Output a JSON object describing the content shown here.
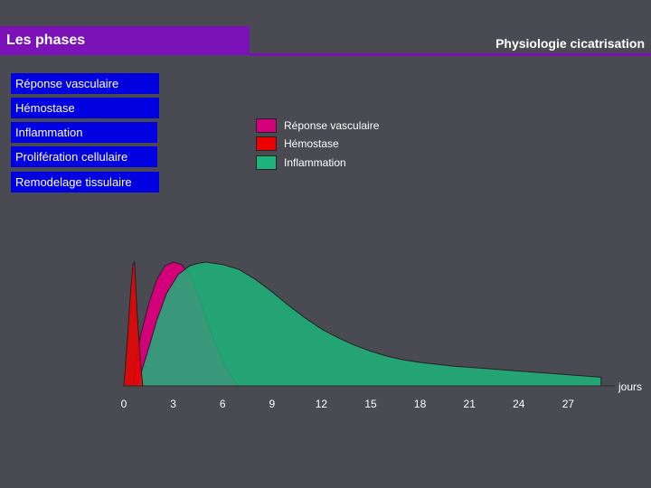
{
  "header": {
    "title": "Les phases",
    "subtitle": "Physiologie cicatrisation",
    "accent_color": "#7a12b8"
  },
  "phases": [
    {
      "label": "Réponse vasculaire"
    },
    {
      "label": "Hémostase"
    },
    {
      "label": "Inflammation"
    },
    {
      "label": "Prolifération cellulaire"
    },
    {
      "label": "Remodelage tissulaire"
    }
  ],
  "phase_box_color": "#0000e0",
  "chart_data": {
    "type": "area",
    "xlabel": "jours",
    "ticks": [
      0,
      3,
      6,
      9,
      12,
      15,
      18,
      21,
      24,
      27
    ],
    "xlim": [
      0,
      29
    ],
    "ylim": [
      0,
      1
    ],
    "legend": [
      {
        "name": "Réponse vasculaire",
        "color": "#d4007a"
      },
      {
        "name": "Hémostase",
        "color": "#ee0000"
      },
      {
        "name": "Inflammation",
        "color": "#1db37a"
      }
    ],
    "series": [
      {
        "name": "Réponse vasculaire",
        "color": "#d4007a",
        "x": [
          0.6,
          1.0,
          1.5,
          2.0,
          2.5,
          3.0,
          3.5,
          4.0,
          4.5,
          5.0,
          5.5,
          6.0,
          6.5,
          7.0
        ],
        "y": [
          0.05,
          0.4,
          0.66,
          0.86,
          0.97,
          1.0,
          0.98,
          0.9,
          0.74,
          0.54,
          0.36,
          0.2,
          0.08,
          0.0
        ]
      },
      {
        "name": "Inflammation",
        "color": "#1db37a",
        "x": [
          0.8,
          1.5,
          2.0,
          2.6,
          3.3,
          4.0,
          4.5,
          5.0,
          6.0,
          7.0,
          8.0,
          9.0,
          10.0,
          11.0,
          12.0,
          13.0,
          14.0,
          15.0,
          16.0,
          17.0,
          18.0,
          20.0,
          22.0,
          24.0,
          26.0,
          28.0,
          29.0
        ],
        "y": [
          0.0,
          0.3,
          0.53,
          0.75,
          0.9,
          0.97,
          0.99,
          1.0,
          0.98,
          0.94,
          0.86,
          0.76,
          0.65,
          0.55,
          0.46,
          0.39,
          0.33,
          0.28,
          0.24,
          0.21,
          0.19,
          0.16,
          0.14,
          0.12,
          0.1,
          0.08,
          0.07
        ]
      },
      {
        "name": "Hémostase",
        "color": "#ee0000",
        "x": [
          0.0,
          0.2,
          0.4,
          0.55,
          0.65,
          0.8,
          1.0,
          1.15
        ],
        "y": [
          0.0,
          0.35,
          0.75,
          0.98,
          1.0,
          0.6,
          0.2,
          0.0
        ]
      }
    ]
  }
}
